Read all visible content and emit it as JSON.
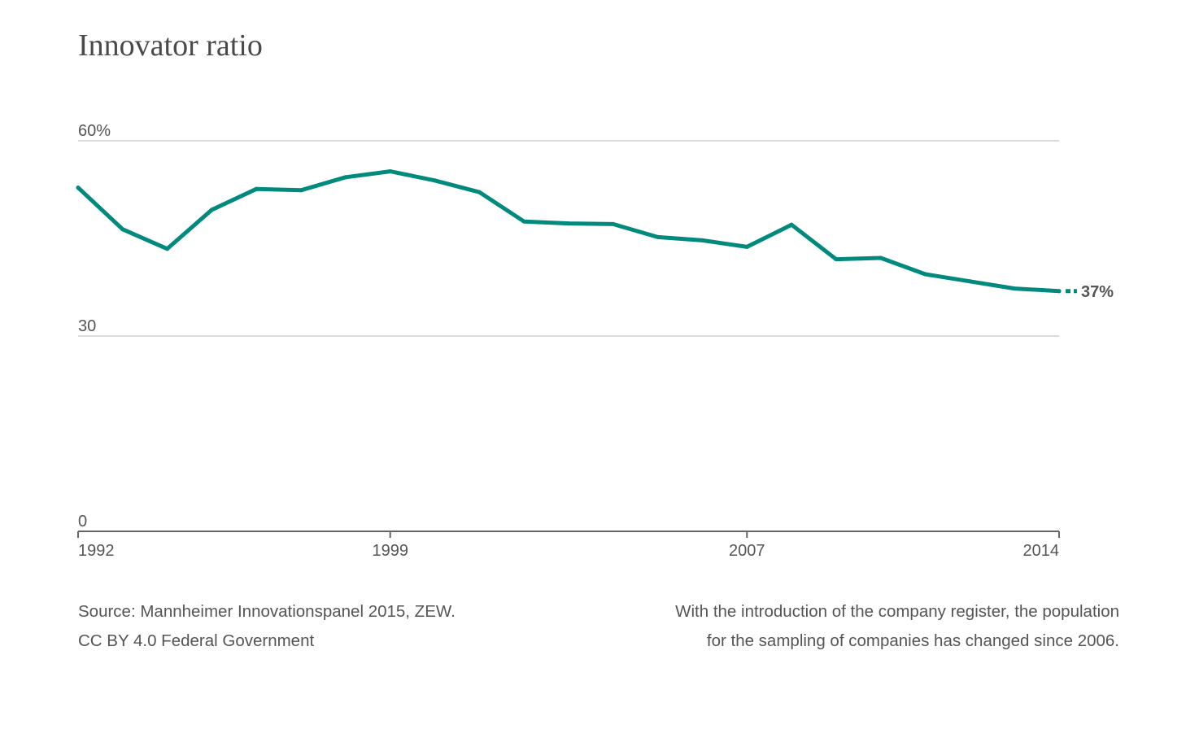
{
  "chart_data": {
    "type": "line",
    "title": "Innovator ratio",
    "ylim": [
      0,
      60
    ],
    "yticks": [
      {
        "value": 60,
        "label": "60%"
      },
      {
        "value": 30,
        "label": "30"
      },
      {
        "value": 0,
        "label": "0"
      }
    ],
    "xlim": [
      1992,
      2014
    ],
    "xticks": [
      {
        "value": 1992,
        "label": "1992"
      },
      {
        "value": 1999,
        "label": "1999"
      },
      {
        "value": 2007,
        "label": "2007"
      },
      {
        "value": 2014,
        "label": "2014"
      }
    ],
    "grid": true,
    "series": [
      {
        "color": "#008a7e",
        "x": [
          1992,
          1993,
          1994,
          1995,
          1996,
          1997,
          1998,
          1999,
          2000,
          2001,
          2002,
          2003,
          2004,
          2005,
          2006,
          2007,
          2008,
          2009,
          2010,
          2011,
          2012,
          2013,
          2014
        ],
        "y": [
          52.8,
          46.4,
          43.4,
          49.4,
          52.6,
          52.4,
          54.4,
          55.3,
          53.9,
          52.1,
          47.6,
          47.3,
          47.2,
          45.2,
          44.7,
          43.7,
          47.1,
          41.8,
          42.0,
          39.5,
          38.4,
          37.3,
          36.9
        ]
      }
    ],
    "end_label": "37%"
  },
  "footer": {
    "source": "Source: Mannheimer Innovationspanel 2015, ZEW.",
    "license": "CC BY 4.0 Federal Government",
    "note_line1": "With the introduction of the company register, the population",
    "note_line2": "for the sampling of companies has changed since 2006."
  }
}
